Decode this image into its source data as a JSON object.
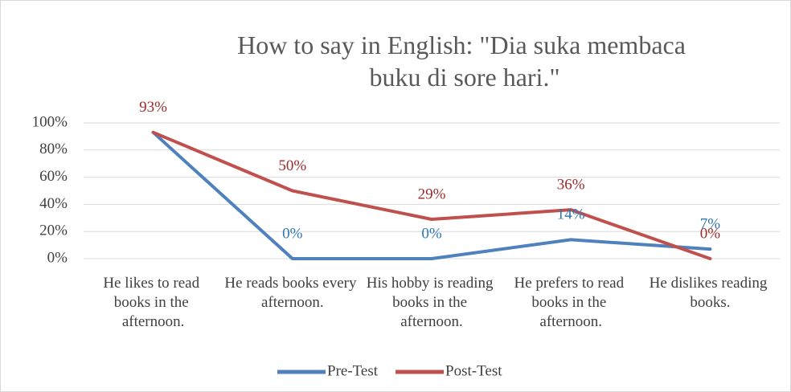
{
  "chart_data": {
    "type": "line",
    "title": "How to say in English: \"Dia suka membaca buku di sore hari.\"",
    "categories": [
      "He likes to read books in the afternoon.",
      "He reads books every afternoon.",
      "His hobby is reading books in the afternoon.",
      "He prefers to read books in the afternoon.",
      "He dislikes reading books."
    ],
    "series": [
      {
        "name": "Pre-Test",
        "color": "#4f81bd",
        "label_color": "#2e75b6",
        "values": [
          93,
          0,
          0,
          14,
          7
        ],
        "value_labels": [
          null,
          "0%",
          "0%",
          "14%",
          "7%"
        ]
      },
      {
        "name": "Post-Test",
        "color": "#c0504d",
        "label_color": "#9e2a2b",
        "values": [
          93,
          50,
          29,
          36,
          0
        ],
        "value_labels": [
          "93%",
          "50%",
          "29%",
          "36%",
          "0%"
        ]
      }
    ],
    "ylim": [
      0,
      100
    ],
    "yticks": [
      {
        "value": 0,
        "label": "0%"
      },
      {
        "value": 20,
        "label": "20%"
      },
      {
        "value": 40,
        "label": "40%"
      },
      {
        "value": 60,
        "label": "60%"
      },
      {
        "value": 80,
        "label": "80%"
      },
      {
        "value": 100,
        "label": "100%"
      }
    ],
    "grid": true,
    "legend": "bottom"
  }
}
